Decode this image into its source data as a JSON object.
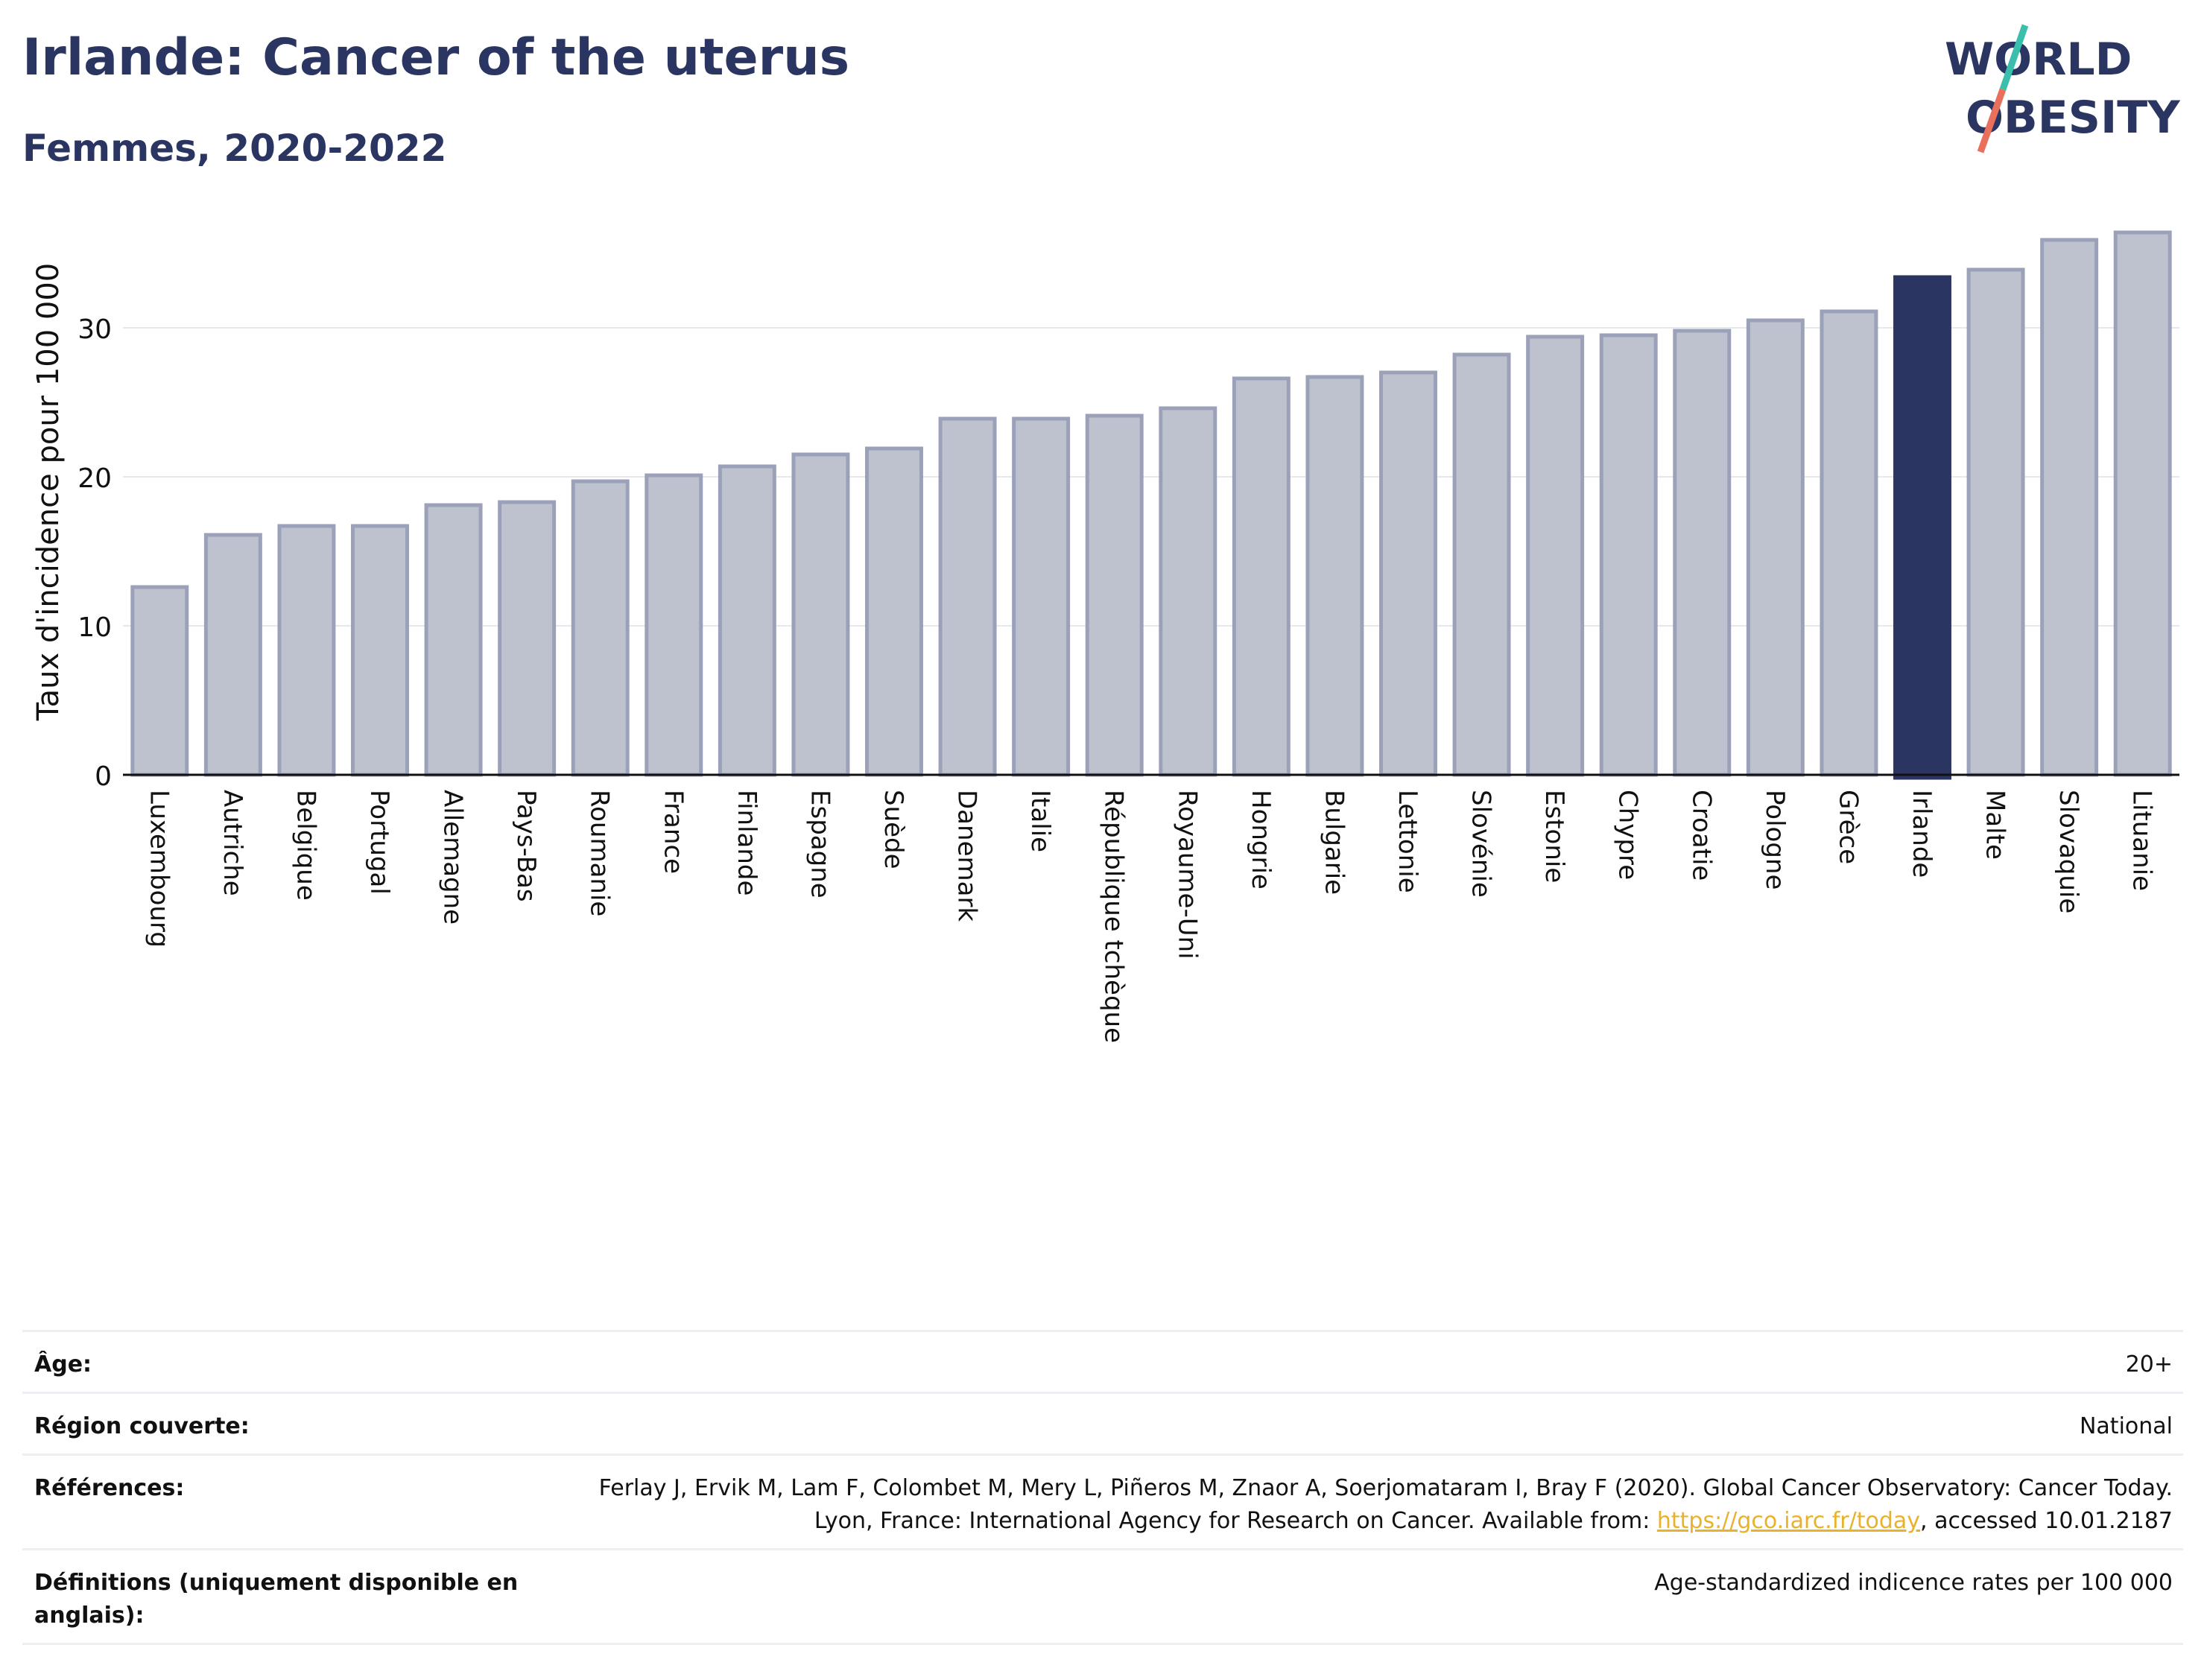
{
  "header": {
    "title": "Irlande: Cancer of the uterus",
    "subtitle": "Femmes, 2020-2022"
  },
  "logo": {
    "line1": "WORLD",
    "line2": "OBESITY",
    "colors": {
      "text": "#2b3562",
      "slash_top": "#3bbfad",
      "slash_bottom": "#e8705d"
    }
  },
  "chart_data": {
    "type": "bar",
    "ylabel": "Taux d'incidence pour 100 000",
    "xlabel": "",
    "ylim": [
      0,
      38
    ],
    "yticks": [
      0,
      10,
      20,
      30
    ],
    "grid": true,
    "highlight": "Irlande",
    "colors": {
      "bar": "#bec2cf",
      "bar_edge": "#9ba1b8",
      "highlight": "#2b3562"
    },
    "categories": [
      "Luxembourg",
      "Autriche",
      "Belgique",
      "Portugal",
      "Allemagne",
      "Pays-Bas",
      "Roumanie",
      "France",
      "Finlande",
      "Espagne",
      "Suède",
      "Danemark",
      "Italie",
      "République tchèque",
      "Royaume-Uni",
      "Hongrie",
      "Bulgarie",
      "Lettonie",
      "Slovénie",
      "Estonie",
      "Chypre",
      "Croatie",
      "Pologne",
      "Grèce",
      "Irlande",
      "Malte",
      "Slovaquie",
      "Lituanie"
    ],
    "values": [
      12.6,
      16.1,
      16.7,
      16.7,
      18.1,
      18.3,
      19.7,
      20.1,
      20.7,
      21.5,
      21.9,
      23.9,
      23.9,
      24.1,
      24.6,
      26.6,
      26.7,
      27.0,
      28.2,
      29.4,
      29.5,
      29.8,
      30.5,
      31.1,
      33.4,
      33.9,
      35.9,
      36.4
    ]
  },
  "info": {
    "age_label": "Âge:",
    "age_value": "20+",
    "region_label": "Région couverte:",
    "region_value": "National",
    "refs_label": "Références:",
    "refs_text": "Ferlay J, Ervik M, Lam F, Colombet M, Mery L, Piñeros M, Znaor A, Soerjomataram I, Bray F (2020). Global Cancer Observatory: Cancer Today. Lyon, France: International Agency for Research on Cancer. Available from: ",
    "refs_link": "https://gco.iarc.fr/today",
    "refs_tail": ", accessed 10.01.2187",
    "defs_label": "Définitions (uniquement disponible en anglais):",
    "defs_value": "Age-standardized indicence rates per 100 000"
  }
}
